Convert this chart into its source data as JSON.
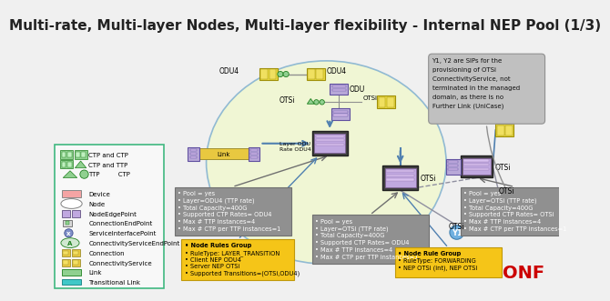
{
  "title": "Multi-rate, Multi-layer Nodes, Multi-layer flexibility - Internal NEP Pool (1/3)",
  "title_fontsize": 11,
  "bg_color": "#f0f0f0",
  "note_text": "Y1, Y2 are SIPs for the\nprovisioning of OTSi\nConnectivityService, not\nterminated in the managed\ndomain, as there is no\nFurther Link (UniCase)",
  "gray_box_left": {
    "text": [
      "Pool = yes",
      "Layer=ODU4 (TTP rate)",
      "Total Capacity=400G",
      "Supported CTP Rates= ODU4",
      "Max # TTP instances=4",
      "Max # CTP per TTP instances=1"
    ]
  },
  "gray_box_center": {
    "text": [
      "Pool = yes",
      "Layer=OTSi (TTP rate)",
      "Total Capacity=400G",
      "Supported CTP Rates= ODU4",
      "Max # TTP instances=4",
      "Max # CTP per TTP instances=1"
    ]
  },
  "gray_box_right": {
    "text": [
      "Pool = yes",
      "Layer=OTSi (TTP rate)",
      "Total Capacity=400G",
      "Supported CTP Rates= OTSi",
      "Max # TTP instances=4",
      "Max # CTP per TTP instances=1"
    ]
  },
  "yellow_box_left": {
    "text": [
      "Node Rules Group",
      "RuleType: LAYER_TRANSITION",
      "Client NEP ODU4",
      "Server NEP OTSi",
      "Supported Transitions=(OTSi,ODU4)"
    ]
  },
  "yellow_box_right": {
    "text": [
      "Node Rule Group",
      "RuleType: FORWARDING",
      "NEP OTSi (int), NEP OTSi"
    ]
  },
  "onf_color": "#cc0000"
}
